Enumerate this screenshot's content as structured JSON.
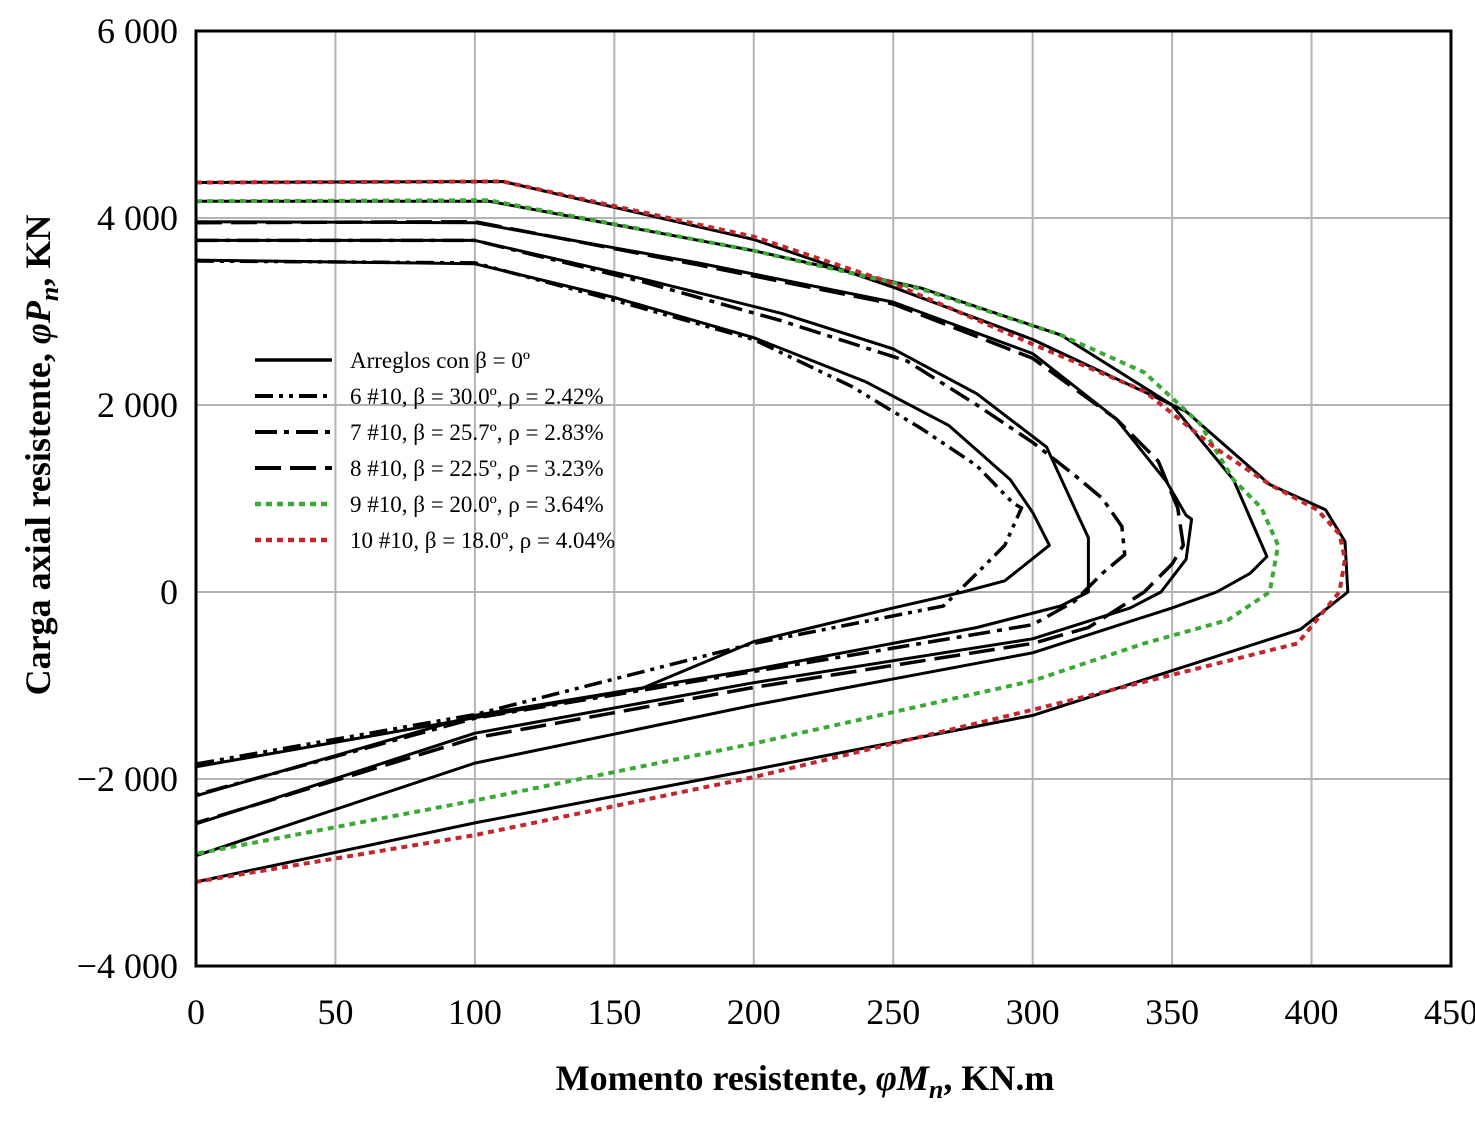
{
  "chart_data": {
    "type": "line",
    "xlabel": {
      "prefix": "Momento resistente, ",
      "symbol": "φM",
      "sub": "n",
      "suffix": ", KN.m"
    },
    "ylabel": {
      "prefix": "Carga axial resistente, ",
      "symbol": "φP",
      "sub": "n",
      "suffix": ", KN"
    },
    "xlim": [
      0,
      450
    ],
    "ylim": [
      -4000,
      6000
    ],
    "grid": true,
    "x_ticks": [
      0,
      50,
      100,
      150,
      200,
      250,
      300,
      350,
      400,
      450
    ],
    "x_tick_labels": [
      "0",
      "50",
      "100",
      "150",
      "200",
      "250",
      "300",
      "350",
      "400",
      "450"
    ],
    "y_ticks": [
      -4000,
      -2000,
      0,
      2000,
      4000,
      6000
    ],
    "y_tick_labels": [
      "−4 000",
      "−2 000",
      "0",
      "2 000",
      "4 000",
      "6 000"
    ],
    "legend": [
      {
        "label": "Arreglos con β = 0º",
        "style": "solid",
        "color": "#000000"
      },
      {
        "label": "6 #10, β = 30.0º, ρ = 2.42%",
        "style": "dash-dot-dot",
        "color": "#000000"
      },
      {
        "label": "7 #10, β = 25.7º, ρ = 2.83%",
        "style": "dash-dot",
        "color": "#000000"
      },
      {
        "label": "8 #10, β = 22.5º, ρ = 3.23%",
        "style": "long-dash",
        "color": "#000000"
      },
      {
        "label": "9 #10, β = 20.0º, ρ = 3.64%",
        "style": "dotted",
        "color": "#3aaa35"
      },
      {
        "label": "10 #10, β = 18.0º, ρ = 4.04%",
        "style": "dotted",
        "color": "#c1272d"
      }
    ],
    "series": [
      {
        "name": "Arreglos con β = 0º (6 #10)",
        "style": "solid",
        "color": "#000000",
        "points": [
          [
            0,
            3550
          ],
          [
            100,
            3510
          ],
          [
            150,
            3150
          ],
          [
            200,
            2720
          ],
          [
            240,
            2250
          ],
          [
            270,
            1780
          ],
          [
            292,
            1200
          ],
          [
            300,
            850
          ],
          [
            306,
            500
          ],
          [
            290,
            120
          ],
          [
            275,
            0
          ],
          [
            250,
            -170
          ],
          [
            200,
            -530
          ],
          [
            160,
            -1030
          ],
          [
            0,
            -1870
          ]
        ]
      },
      {
        "name": "Arreglos con β = 0º (7 #10)",
        "style": "solid",
        "color": "#000000",
        "points": [
          [
            0,
            3760
          ],
          [
            100,
            3760
          ],
          [
            160,
            3350
          ],
          [
            210,
            2980
          ],
          [
            250,
            2600
          ],
          [
            280,
            2120
          ],
          [
            305,
            1550
          ],
          [
            315,
            900
          ],
          [
            320,
            580
          ],
          [
            320,
            0
          ],
          [
            310,
            -150
          ],
          [
            280,
            -380
          ],
          [
            200,
            -830
          ],
          [
            100,
            -1320
          ],
          [
            0,
            -2180
          ]
        ]
      },
      {
        "name": "Arreglos con β = 0º (8 #10)",
        "style": "solid",
        "color": "#000000",
        "points": [
          [
            0,
            3960
          ],
          [
            100,
            3950
          ],
          [
            180,
            3520
          ],
          [
            250,
            3100
          ],
          [
            300,
            2550
          ],
          [
            330,
            1850
          ],
          [
            348,
            1180
          ],
          [
            355,
            820
          ],
          [
            357,
            780
          ],
          [
            355,
            350
          ],
          [
            346,
            0
          ],
          [
            335,
            -170
          ],
          [
            300,
            -500
          ],
          [
            200,
            -970
          ],
          [
            100,
            -1510
          ],
          [
            0,
            -2480
          ]
        ]
      },
      {
        "name": "Arreglos con β = 0º (9 #10)",
        "style": "solid",
        "color": "#000000",
        "points": [
          [
            0,
            4180
          ],
          [
            105,
            4180
          ],
          [
            200,
            3650
          ],
          [
            260,
            3250
          ],
          [
            310,
            2750
          ],
          [
            350,
            2000
          ],
          [
            372,
            1200
          ],
          [
            384,
            380
          ],
          [
            378,
            200
          ],
          [
            366,
            0
          ],
          [
            350,
            -170
          ],
          [
            300,
            -650
          ],
          [
            200,
            -1210
          ],
          [
            100,
            -1830
          ],
          [
            0,
            -2820
          ]
        ]
      },
      {
        "name": "Arreglos con β = 0º (10 #10)",
        "style": "solid",
        "color": "#000000",
        "points": [
          [
            0,
            4380
          ],
          [
            110,
            4390
          ],
          [
            200,
            3770
          ],
          [
            250,
            3260
          ],
          [
            300,
            2700
          ],
          [
            355,
            1930
          ],
          [
            385,
            1150
          ],
          [
            405,
            880
          ],
          [
            412,
            540
          ],
          [
            413,
            0
          ],
          [
            396,
            -400
          ],
          [
            300,
            -1320
          ],
          [
            200,
            -1900
          ],
          [
            100,
            -2470
          ],
          [
            0,
            -3100
          ]
        ]
      },
      {
        "name": "6 #10, β = 30.0º, ρ = 2.42%",
        "style": "dash-dot-dot",
        "color": "#000000",
        "points": [
          [
            0,
            3540
          ],
          [
            100,
            3520
          ],
          [
            150,
            3120
          ],
          [
            200,
            2700
          ],
          [
            235,
            2200
          ],
          [
            260,
            1750
          ],
          [
            280,
            1350
          ],
          [
            293,
            950
          ],
          [
            296,
            900
          ],
          [
            290,
            500
          ],
          [
            280,
            200
          ],
          [
            268,
            -150
          ],
          [
            200,
            -550
          ],
          [
            100,
            -1310
          ],
          [
            0,
            -1840
          ]
        ]
      },
      {
        "name": "7 #10, β = 25.7º, ρ = 2.83%",
        "style": "dash-dot",
        "color": "#000000",
        "points": [
          [
            0,
            3760
          ],
          [
            100,
            3760
          ],
          [
            160,
            3320
          ],
          [
            210,
            2900
          ],
          [
            255,
            2470
          ],
          [
            280,
            2000
          ],
          [
            300,
            1600
          ],
          [
            315,
            1250
          ],
          [
            325,
            1000
          ],
          [
            332,
            700
          ],
          [
            333,
            400
          ],
          [
            325,
            200
          ],
          [
            315,
            -100
          ],
          [
            300,
            -350
          ],
          [
            200,
            -850
          ],
          [
            100,
            -1350
          ],
          [
            0,
            -2170
          ]
        ]
      },
      {
        "name": "8 #10, β = 22.5º, ρ = 3.23%",
        "style": "long-dash",
        "color": "#000000",
        "points": [
          [
            0,
            3950
          ],
          [
            100,
            3960
          ],
          [
            180,
            3500
          ],
          [
            250,
            3080
          ],
          [
            300,
            2500
          ],
          [
            330,
            1850
          ],
          [
            345,
            1400
          ],
          [
            352,
            900
          ],
          [
            354,
            500
          ],
          [
            350,
            300
          ],
          [
            340,
            0
          ],
          [
            320,
            -380
          ],
          [
            300,
            -550
          ],
          [
            200,
            -1020
          ],
          [
            100,
            -1560
          ],
          [
            0,
            -2470
          ]
        ]
      },
      {
        "name": "9 #10, β = 20.0º, ρ = 3.64%",
        "style": "dotted",
        "color": "#3aaa35",
        "points": [
          [
            0,
            4180
          ],
          [
            105,
            4190
          ],
          [
            200,
            3650
          ],
          [
            260,
            3240
          ],
          [
            310,
            2750
          ],
          [
            340,
            2350
          ],
          [
            360,
            1800
          ],
          [
            372,
            1200
          ],
          [
            382,
            900
          ],
          [
            388,
            500
          ],
          [
            385,
            0
          ],
          [
            370,
            -300
          ],
          [
            340,
            -550
          ],
          [
            300,
            -950
          ],
          [
            200,
            -1620
          ],
          [
            100,
            -2230
          ],
          [
            0,
            -2800
          ]
        ]
      },
      {
        "name": "10 #10, β = 18.0º, ρ = 4.04%",
        "style": "dotted",
        "color": "#c1272d",
        "points": [
          [
            0,
            4380
          ],
          [
            110,
            4390
          ],
          [
            200,
            3800
          ],
          [
            250,
            3300
          ],
          [
            300,
            2650
          ],
          [
            340,
            2150
          ],
          [
            365,
            1550
          ],
          [
            385,
            1150
          ],
          [
            402,
            880
          ],
          [
            410,
            620
          ],
          [
            412,
            350
          ],
          [
            410,
            0
          ],
          [
            395,
            -550
          ],
          [
            300,
            -1260
          ],
          [
            200,
            -1980
          ],
          [
            100,
            -2600
          ],
          [
            0,
            -3100
          ]
        ]
      }
    ]
  }
}
